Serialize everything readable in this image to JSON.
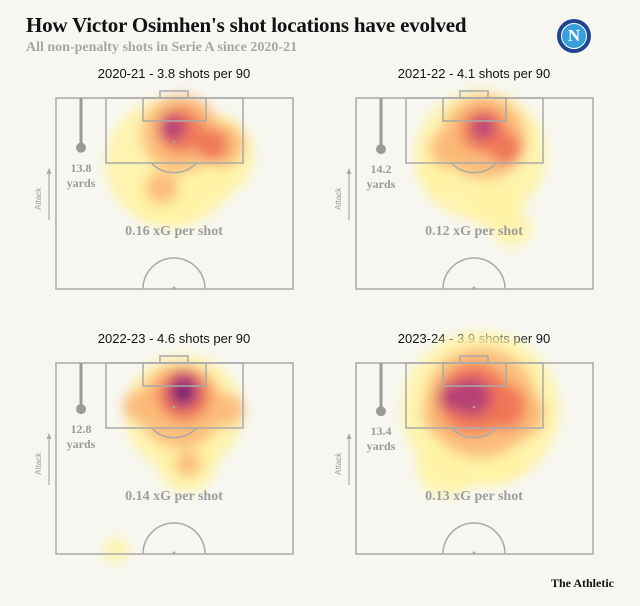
{
  "header": {
    "title": "How Victor Osimhen's shot locations have evolved",
    "subtitle": "All non-penalty shots in Serie A since 2020-21",
    "logo_letter": "N"
  },
  "footer": {
    "brand": "The Athletic"
  },
  "labels": {
    "attack": "Attack",
    "yards": "yards"
  },
  "colors": {
    "levels": [
      "#fff3a3",
      "#fbb877",
      "#ef7256",
      "#b23c78",
      "#4f1270",
      "#12041c"
    ],
    "pitch_line": "#a9a9a9"
  },
  "chart_data": {
    "type": "heatmap",
    "description_units": "pitch yards from left touchline (x) and from goal line (y)",
    "panels": [
      {
        "title": "2020-21 - 3.8 shots per 90",
        "avg_distance": "13.8",
        "xg_label": "0.16 xG per shot",
        "hotspots": [
          {
            "x": 37,
            "y": 18,
            "r": 20,
            "level": 1
          },
          {
            "x": 50,
            "y": 16,
            "r": 13,
            "level": 1
          },
          {
            "x": 36,
            "y": 27,
            "r": 10,
            "level": 1
          },
          {
            "x": 40,
            "y": 10,
            "r": 12,
            "level": 2
          },
          {
            "x": 53,
            "y": 13,
            "r": 7,
            "level": 2
          },
          {
            "x": 34,
            "y": 25,
            "r": 5,
            "level": 2
          },
          {
            "x": 40,
            "y": 9,
            "r": 7,
            "level": 3
          },
          {
            "x": 50,
            "y": 13,
            "r": 5,
            "level": 3
          },
          {
            "x": 37.6,
            "y": 8.3,
            "r": 4,
            "level": 4
          }
        ]
      },
      {
        "title": "2021-22 - 4.1 shots per 90",
        "avg_distance": "14.2",
        "xg_label": "0.12 xG per shot",
        "hotspots": [
          {
            "x": 40,
            "y": 16,
            "r": 20,
            "level": 1
          },
          {
            "x": 44,
            "y": 29,
            "r": 8,
            "level": 1
          },
          {
            "x": 50,
            "y": 36,
            "r": 6,
            "level": 1
          },
          {
            "x": 28,
            "y": 20,
            "r": 8,
            "level": 1
          },
          {
            "x": 41,
            "y": 11,
            "r": 13,
            "level": 2
          },
          {
            "x": 30,
            "y": 14,
            "r": 6,
            "level": 2
          },
          {
            "x": 41,
            "y": 9,
            "r": 7,
            "level": 3
          },
          {
            "x": 48,
            "y": 14,
            "r": 5,
            "level": 3
          },
          {
            "x": 40.8,
            "y": 8.3,
            "r": 3.5,
            "level": 4
          }
        ]
      },
      {
        "title": "2022-23 - 4.6 shots per 90",
        "avg_distance": "12.8",
        "xg_label": "0.14 xG per shot",
        "hotspots": [
          {
            "x": 41,
            "y": 14,
            "r": 18,
            "level": 1
          },
          {
            "x": 42,
            "y": 28,
            "r": 9,
            "level": 1
          },
          {
            "x": 19.4,
            "y": 52,
            "r": 4,
            "level": 1
          },
          {
            "x": 40,
            "y": 12,
            "r": 13,
            "level": 2
          },
          {
            "x": 42.4,
            "y": 28,
            "r": 4,
            "level": 2
          },
          {
            "x": 27,
            "y": 12,
            "r": 5,
            "level": 2
          },
          {
            "x": 55,
            "y": 13,
            "r": 5,
            "level": 2
          },
          {
            "x": 41,
            "y": 9,
            "r": 8,
            "level": 3
          },
          {
            "x": 41,
            "y": 6,
            "r": 4,
            "level": 4
          },
          {
            "x": 40.8,
            "y": 8.3,
            "r": 5,
            "level": 4
          },
          {
            "x": 40.8,
            "y": 8.3,
            "r": 2.5,
            "level": 5
          }
        ]
      },
      {
        "title": "2023-24 - 3.9 shots per 90",
        "avg_distance": "13.4",
        "xg_label": "0.13 xG per shot",
        "hotspots": [
          {
            "x": 40,
            "y": 13,
            "r": 24,
            "level": 1
          },
          {
            "x": 29,
            "y": 29,
            "r": 9,
            "level": 1
          },
          {
            "x": 46,
            "y": 26,
            "r": 8,
            "level": 1
          },
          {
            "x": 40,
            "y": 20,
            "r": 8,
            "level": 1
          },
          {
            "x": 40,
            "y": 11,
            "r": 17,
            "level": 2
          },
          {
            "x": 30,
            "y": 14,
            "r": 8,
            "level": 2
          },
          {
            "x": 52,
            "y": 14,
            "r": 8,
            "level": 2
          },
          {
            "x": 38,
            "y": 10,
            "r": 11,
            "level": 3
          },
          {
            "x": 47,
            "y": 12,
            "r": 7,
            "level": 3
          },
          {
            "x": 37,
            "y": 9.4,
            "r": 6,
            "level": 4
          },
          {
            "x": 31,
            "y": 9.4,
            "r": 4,
            "level": 4
          }
        ]
      }
    ]
  }
}
